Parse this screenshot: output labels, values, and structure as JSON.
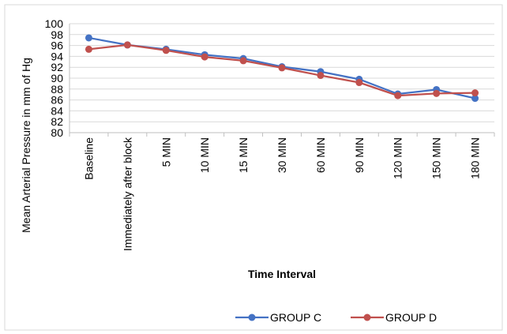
{
  "chart_data": {
    "type": "line",
    "title": "",
    "xlabel": "Time Interval",
    "ylabel": "Mean Arterial Pressure in mm of Hg",
    "ylim": [
      80,
      100
    ],
    "ytick_step": 2,
    "grid": true,
    "legend_position": "bottom",
    "categories": [
      "Baseline",
      "Immediately after block",
      "5 MIN",
      "10 MIN",
      "15 MIN",
      "30 MIN",
      "60 MIN",
      "90 MIN",
      "120 MIN",
      "150 MIN",
      "180 MIN"
    ],
    "series": [
      {
        "name": "GROUP C",
        "color": "#4472C4",
        "values": [
          97.4,
          96.1,
          95.3,
          94.3,
          93.6,
          92.1,
          91.2,
          89.8,
          87.1,
          87.9,
          86.3
        ]
      },
      {
        "name": "GROUP D",
        "color": "#C0504D",
        "values": [
          95.3,
          96.1,
          95.1,
          93.9,
          93.2,
          91.9,
          90.5,
          89.2,
          86.8,
          87.2,
          87.3
        ]
      }
    ]
  }
}
